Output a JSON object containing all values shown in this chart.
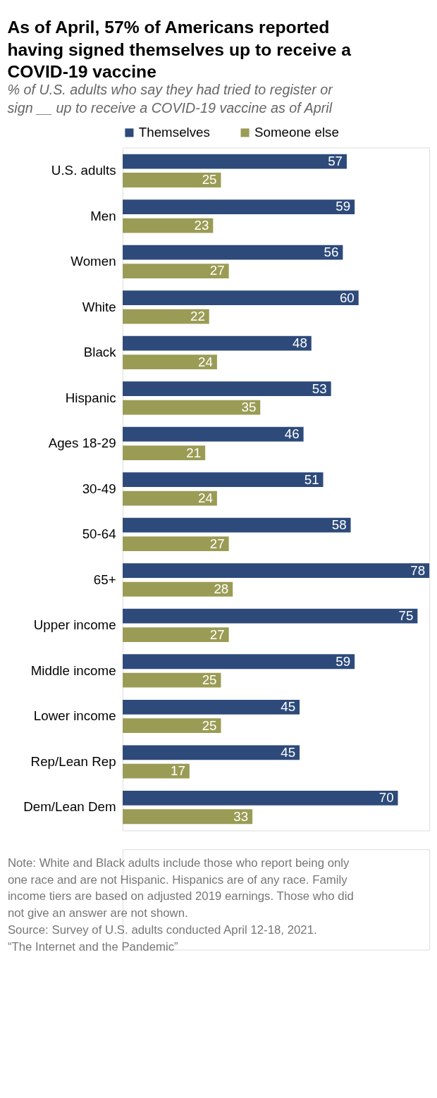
{
  "chart_data": {
    "type": "bar",
    "orientation": "horizontal",
    "title": "As of April, 57% of Americans reported having signed themselves up to receive a COVID-19 vaccine",
    "subtitle": "% of U.S. adults who say they had tried to register or sign __ up to receive a COVID-19 vaccine as of April",
    "categories": [
      "U.S. adults",
      "Men",
      "Women",
      "White",
      "Black",
      "Hispanic",
      "Ages 18-29",
      "30-49",
      "50-64",
      "65+",
      "Upper income",
      "Middle income",
      "Lower income",
      "Rep/Lean Rep",
      "Dem/Lean Dem"
    ],
    "series": [
      {
        "name": "Themselves",
        "color": "#2d4a7a",
        "values": [
          57,
          59,
          56,
          60,
          48,
          53,
          46,
          51,
          58,
          78,
          75,
          59,
          45,
          45,
          70
        ]
      },
      {
        "name": "Someone else",
        "color": "#9a9c55",
        "values": [
          25,
          23,
          27,
          22,
          24,
          35,
          21,
          24,
          27,
          28,
          27,
          25,
          25,
          17,
          33
        ]
      }
    ],
    "data_labels": true,
    "legend": "top",
    "tick_labels": "y",
    "grid": false,
    "annotations": [
      "Note: White and Black adults include those who report being only one race and are not Hispanic. Hispanics are of any race. Family income tiers are based on adjusted 2019 earnings. Those who did not give an answer are not shown.",
      "Source: Survey of U.S. adults conducted April 12-18, 2021.",
      "“The Internet and the Pandemic”"
    ]
  }
}
